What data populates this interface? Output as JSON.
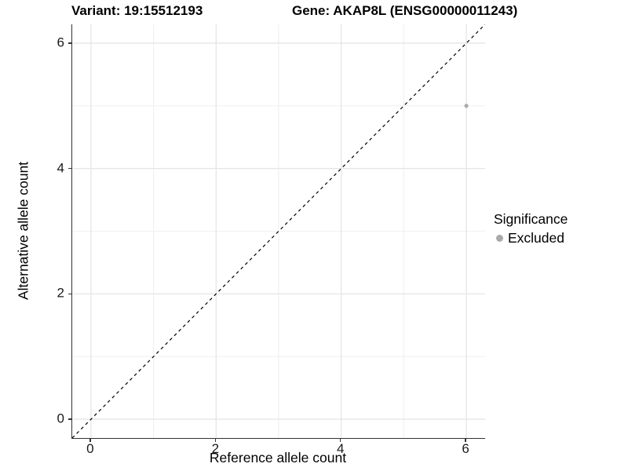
{
  "header": {
    "variant": "Variant: 19:15512193",
    "gene": "Gene: AKAP8L (ENSG00000011243)"
  },
  "chart_data": {
    "type": "scatter",
    "xlabel": "Reference allele count",
    "ylabel": "Alternative allele count",
    "xlim": [
      -0.3,
      6.3
    ],
    "ylim": [
      -0.3,
      6.3
    ],
    "xticks": [
      0,
      2,
      4,
      6
    ],
    "yticks": [
      0,
      2,
      4,
      6
    ],
    "minor_xticks": [
      1,
      3,
      5
    ],
    "minor_yticks": [
      1,
      3,
      5
    ],
    "grid": "on",
    "points": [
      {
        "x": 6,
        "y": 5,
        "series": "Excluded"
      }
    ],
    "reference_line": {
      "type": "identity y = x",
      "style": "dashed",
      "from": [
        -0.3,
        -0.3
      ],
      "to": [
        6.3,
        6.3
      ],
      "color": "#000000"
    },
    "legend": {
      "title": "Significance",
      "position": "right",
      "items": [
        {
          "label": "Excluded",
          "color": "#aaaaaa"
        }
      ]
    }
  },
  "colors": {
    "background": "#ffffff",
    "grid_major": "#e5e5e5",
    "grid_minor": "#f1f1f1",
    "axis_line": "#333333",
    "tick_text": "#1a1a1a",
    "point": "#aaaaaa"
  }
}
